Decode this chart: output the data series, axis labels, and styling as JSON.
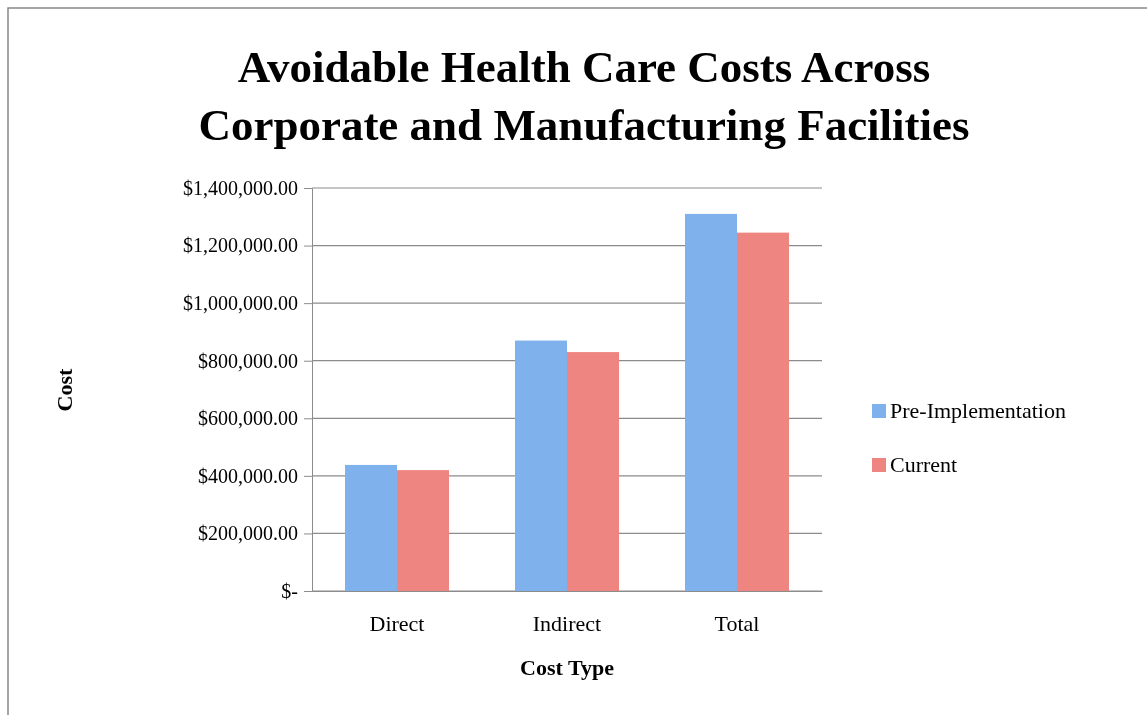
{
  "chart_data": {
    "type": "bar",
    "title": "Avoidable Health Care Costs Across Corporate and Manufacturing Facilities",
    "xlabel": "Cost Type",
    "ylabel": "Cost",
    "categories": [
      "Direct",
      "Indirect",
      "Total"
    ],
    "series": [
      {
        "name": "Pre-Implementation",
        "color": "#7fb1ec",
        "values": [
          438000,
          870000,
          1310000
        ]
      },
      {
        "name": "Current",
        "color": "#ee8580",
        "values": [
          420000,
          830000,
          1245000
        ]
      }
    ],
    "ylim": [
      0,
      1400000
    ],
    "yticks": [
      {
        "value": 0,
        "label": "$-"
      },
      {
        "value": 200000,
        "label": "$200,000.00"
      },
      {
        "value": 400000,
        "label": "$400,000.00"
      },
      {
        "value": 600000,
        "label": "$600,000.00"
      },
      {
        "value": 800000,
        "label": "$800,000.00"
      },
      {
        "value": 1000000,
        "label": "$1,000,000.00"
      },
      {
        "value": 1200000,
        "label": "$1,200,000.00"
      },
      {
        "value": 1400000,
        "label": "$1,400,000.00"
      }
    ],
    "grid": "y",
    "legend": "right"
  }
}
